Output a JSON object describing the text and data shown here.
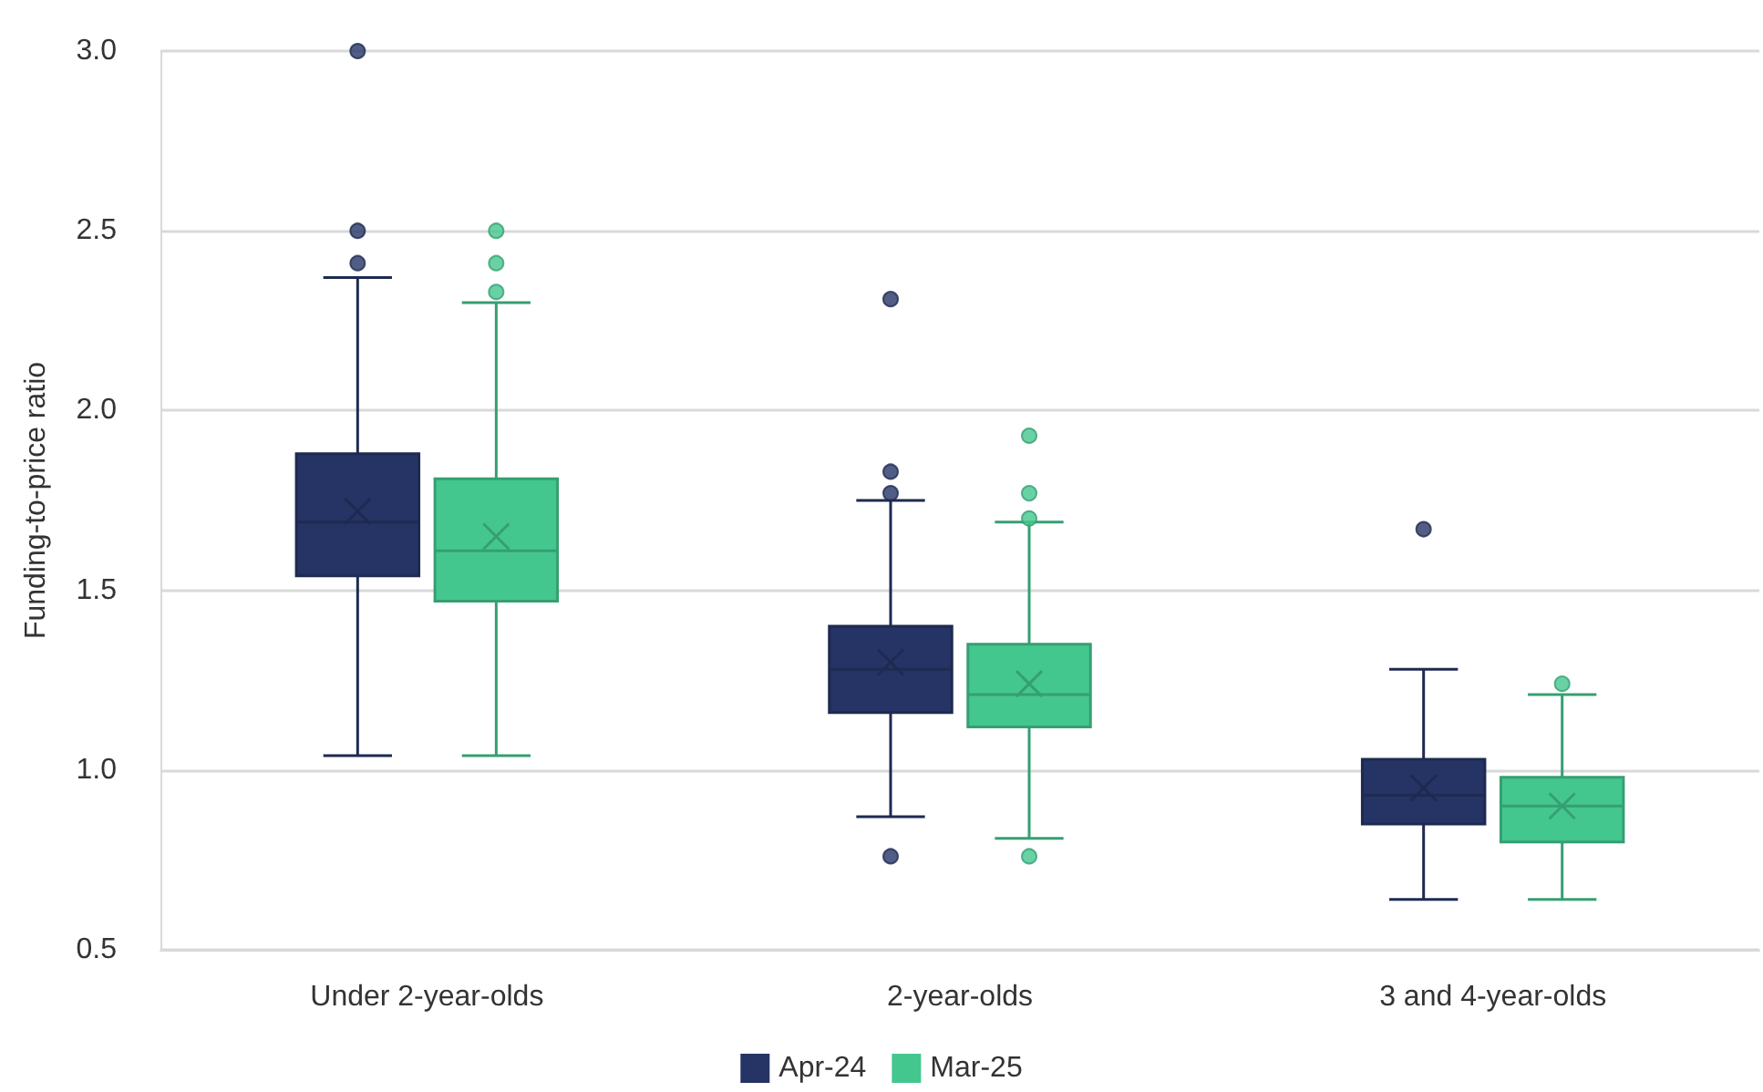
{
  "chart_data": {
    "type": "box",
    "ylabel": "Funding-to-price ratio",
    "categories": [
      "Under 2-year-olds",
      "2-year-olds",
      "3 and 4-year-olds"
    ],
    "series": [
      {
        "name": "Apr-24",
        "color": "#253465",
        "boxes": [
          {
            "low": 1.04,
            "q1": 1.54,
            "median": 1.69,
            "q3": 1.88,
            "high": 2.37,
            "mean": 1.72,
            "outliers": [
              3.0,
              2.5,
              2.41
            ]
          },
          {
            "low": 0.87,
            "q1": 1.16,
            "median": 1.28,
            "q3": 1.4,
            "high": 1.75,
            "mean": 1.3,
            "outliers": [
              2.31,
              1.83,
              1.77,
              0.76
            ]
          },
          {
            "low": 0.64,
            "q1": 0.85,
            "median": 0.93,
            "q3": 1.03,
            "high": 1.28,
            "mean": 0.95,
            "outliers": [
              1.67
            ]
          }
        ]
      },
      {
        "name": "Mar-25",
        "color": "#44c78f",
        "boxes": [
          {
            "low": 1.04,
            "q1": 1.47,
            "median": 1.61,
            "q3": 1.81,
            "high": 2.3,
            "mean": 1.65,
            "outliers": [
              2.5,
              2.41,
              2.33
            ]
          },
          {
            "low": 0.81,
            "q1": 1.12,
            "median": 1.21,
            "q3": 1.35,
            "high": 1.69,
            "mean": 1.24,
            "outliers": [
              1.93,
              1.77,
              1.7,
              0.76
            ]
          },
          {
            "low": 0.64,
            "q1": 0.8,
            "median": 0.9,
            "q3": 0.98,
            "high": 1.21,
            "mean": 0.9,
            "outliers": [
              1.24
            ]
          }
        ]
      }
    ],
    "ylim": [
      0.5,
      3.0
    ],
    "yticks": [
      {
        "value": 0.5,
        "label": "0.5"
      },
      {
        "value": 1,
        "label": "1.0"
      },
      {
        "value": 1.5,
        "label": "1.5"
      },
      {
        "value": 2,
        "label": "2.0"
      },
      {
        "value": 2.5,
        "label": "2.5"
      },
      {
        "value": 3,
        "label": "3.0"
      }
    ],
    "grid": "y",
    "legend": "bottom"
  }
}
